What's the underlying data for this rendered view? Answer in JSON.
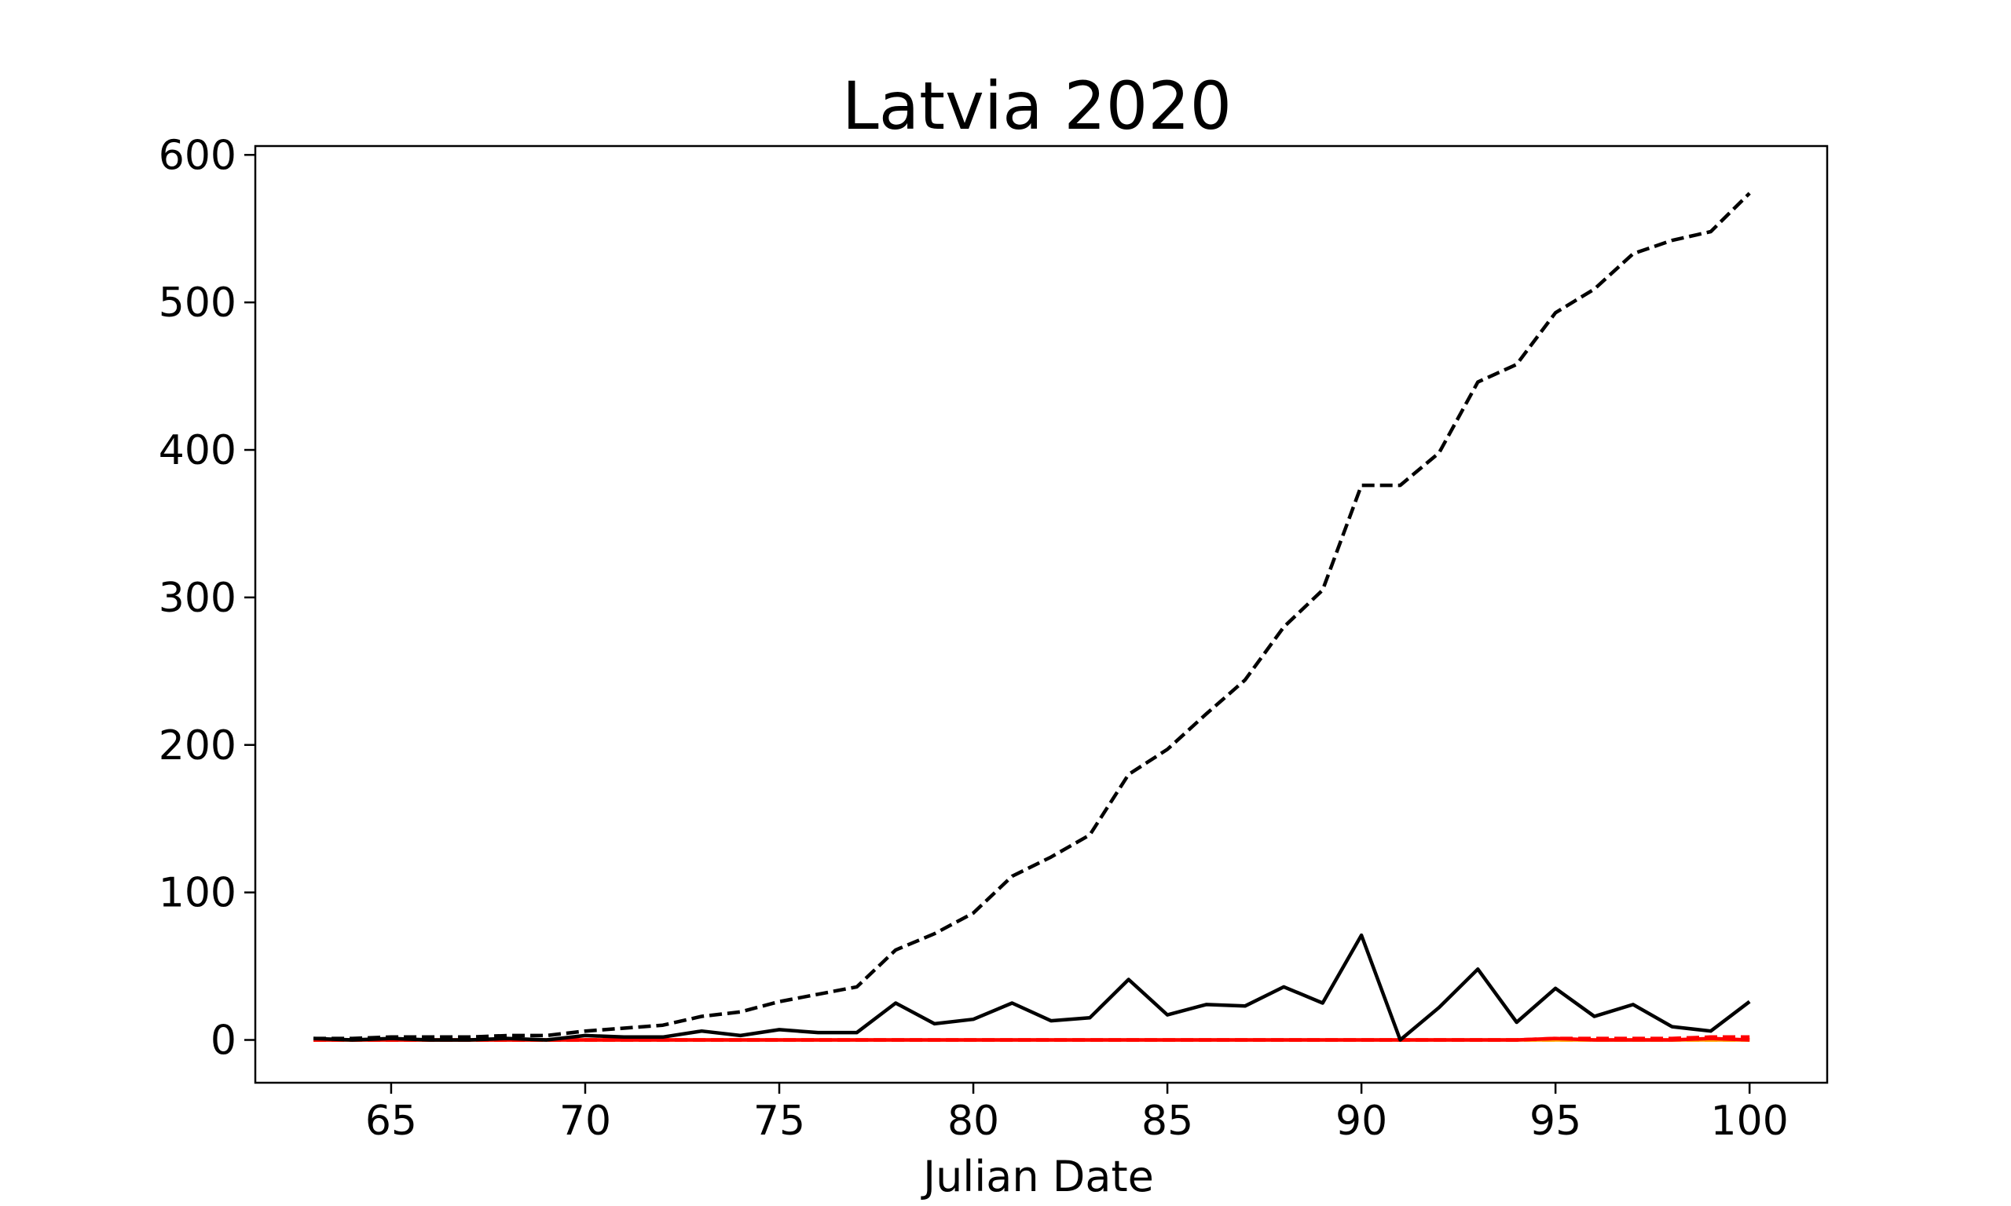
{
  "chart_data": {
    "type": "line",
    "title": "Latvia 2020",
    "xlabel": "Julian Date",
    "ylabel": "",
    "xlim": [
      61.5,
      102
    ],
    "ylim": [
      -29,
      606
    ],
    "xticks": [
      65,
      70,
      75,
      80,
      85,
      90,
      95,
      100
    ],
    "yticks": [
      0,
      100,
      200,
      300,
      400,
      500,
      600
    ],
    "grid": false,
    "legend": "none",
    "x": [
      63,
      64,
      65,
      66,
      67,
      68,
      69,
      70,
      71,
      72,
      73,
      74,
      75,
      76,
      77,
      78,
      79,
      80,
      81,
      82,
      83,
      84,
      85,
      86,
      87,
      88,
      89,
      90,
      91,
      92,
      93,
      94,
      95,
      96,
      97,
      98,
      99,
      100
    ],
    "series": [
      {
        "style": "dashed",
        "color": "#000000",
        "values": [
          1,
          1,
          2,
          2,
          2,
          3,
          3,
          6,
          8,
          10,
          16,
          19,
          26,
          31,
          36,
          61,
          72,
          86,
          111,
          124,
          139,
          180,
          197,
          221,
          244,
          280,
          305,
          376,
          376,
          398,
          446,
          458,
          493,
          509,
          533,
          542,
          548,
          574
        ]
      },
      {
        "style": "solid",
        "color": "#000000",
        "values": [
          1,
          0,
          1,
          0,
          0,
          1,
          0,
          3,
          2,
          2,
          6,
          3,
          7,
          5,
          5,
          25,
          11,
          14,
          25,
          13,
          15,
          41,
          17,
          24,
          23,
          36,
          25,
          71,
          0,
          22,
          48,
          12,
          35,
          16,
          24,
          9,
          6,
          26
        ]
      },
      {
        "style": "dashed",
        "color": "#ff0000",
        "values": [
          0,
          0,
          0,
          0,
          0,
          0,
          0,
          0,
          0,
          0,
          0,
          0,
          0,
          0,
          0,
          0,
          0,
          0,
          0,
          0,
          0,
          0,
          0,
          0,
          0,
          0,
          0,
          0,
          0,
          0,
          0,
          0,
          1,
          1,
          1,
          1,
          2,
          2
        ]
      },
      {
        "style": "solid",
        "color": "#ff0000",
        "values": [
          0,
          0,
          0,
          0,
          0,
          0,
          0,
          0,
          0,
          0,
          0,
          0,
          0,
          0,
          0,
          0,
          0,
          0,
          0,
          0,
          0,
          0,
          0,
          0,
          0,
          0,
          0,
          0,
          0,
          0,
          0,
          0,
          1,
          0,
          0,
          0,
          1,
          0
        ]
      },
      {
        "style": "dashed",
        "color": "#ffa500",
        "values": [
          0,
          0,
          0,
          0,
          0,
          0,
          0,
          0,
          0,
          0,
          0,
          0,
          0,
          0,
          0,
          0,
          0,
          0,
          0,
          0,
          0,
          0,
          0,
          0,
          0,
          0,
          0,
          0,
          0,
          0,
          0,
          0,
          0,
          0,
          0,
          0,
          0,
          0
        ]
      },
      {
        "style": "solid",
        "color": "#ffa500",
        "values": [
          0,
          0,
          0,
          0,
          0,
          0,
          0,
          0,
          0,
          0,
          0,
          0,
          0,
          0,
          0,
          0,
          0,
          0,
          0,
          0,
          0,
          0,
          0,
          0,
          0,
          0,
          0,
          0,
          0,
          0,
          0,
          0,
          0,
          0,
          0,
          0,
          0,
          0
        ]
      }
    ]
  }
}
